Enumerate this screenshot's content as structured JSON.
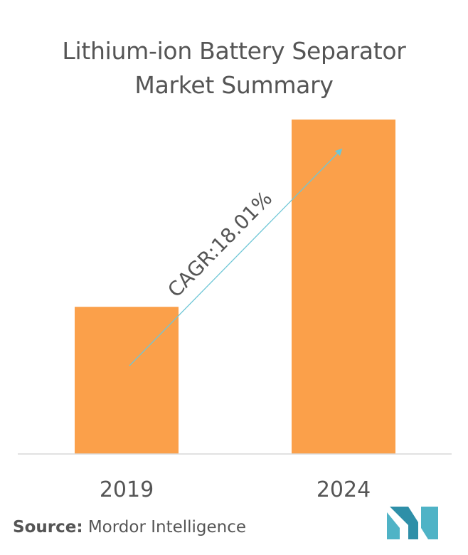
{
  "header": {
    "title_line1": "Lithium-ion Battery Separator",
    "title_line2": "Market Summary"
  },
  "chart_data": {
    "type": "bar",
    "title": "Lithium-ion Battery Separator Market Summary",
    "categories": [
      "2019",
      "2024"
    ],
    "values": [
      0.44,
      1.0
    ],
    "value_scale": "relative (no y-axis printed)",
    "bar_color": "#FBA04A",
    "annotation": {
      "text": "CAGR:18.01%",
      "arrow_color": "#6EC6D6"
    },
    "grid": false,
    "legend": "none"
  },
  "footer": {
    "source_label": "Source:",
    "source_value": "Mordor Intelligence",
    "logo_icon": "mordor-intelligence-logo-icon"
  },
  "colors": {
    "bar": "#FBA04A",
    "arrow": "#6EC6D6",
    "baseline": "#D9D9D9",
    "logo": "#4FB3C6",
    "text": "#555555"
  }
}
